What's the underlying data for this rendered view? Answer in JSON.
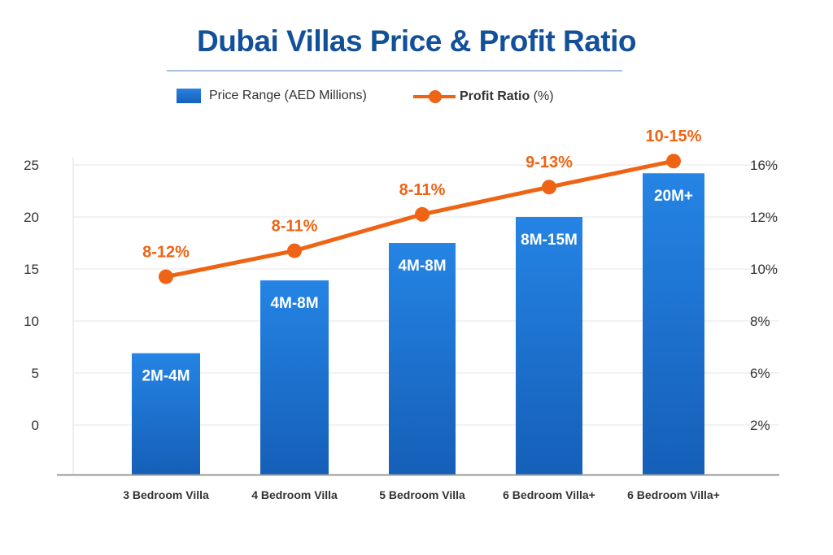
{
  "chart_data": {
    "type": "bar+line",
    "title": "Dubai Villas Price & Profit Ratio",
    "legend": {
      "placement": "top",
      "bar_label": "Price Range (AED Millions)",
      "line_label_bold": "Profit Ratio",
      "line_label_rest": " (%)"
    },
    "categories": [
      "3 Bedroom Villa",
      "4 Bedroom Villa",
      "5 Bedroom Villa",
      "6 Bedroom Villa+",
      "6 Bedroom Villa+"
    ],
    "bar_series": {
      "name": "Price Range (AED Millions)",
      "values": [
        6.9,
        13.9,
        17.5,
        20,
        24.2
      ],
      "labels": [
        "2M-4M",
        "4M-8M",
        "4M-8M",
        "8M-15M",
        "20M+"
      ],
      "color": "#1e6fd0"
    },
    "line_series": {
      "name": "Profit Ratio (%)",
      "values": [
        9.7,
        10.7,
        12.2,
        14.3,
        16.3
      ],
      "labels": [
        "8-12%",
        "8-11%",
        "8-11%",
        "9-13%",
        "10-15%"
      ],
      "color": "#ee6414"
    },
    "left_axis": {
      "ticks": [
        0,
        5,
        10,
        15,
        20,
        25
      ],
      "ylim": [
        -4.8,
        25
      ]
    },
    "right_axis": {
      "ticks": [
        "2%",
        "6%",
        "8%",
        "10%",
        "12%",
        "16%"
      ],
      "tick_values": [
        2,
        6,
        8,
        10,
        12,
        16
      ]
    },
    "grid": true,
    "title_color": "#13509a"
  }
}
